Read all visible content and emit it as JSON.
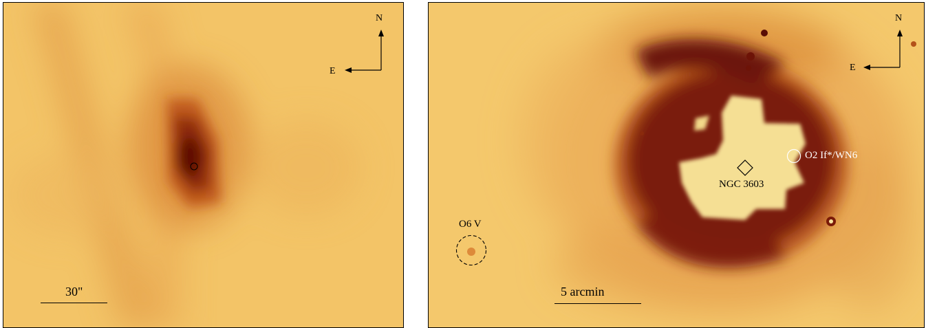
{
  "left_panel": {
    "compass": {
      "north": "N",
      "east": "E"
    },
    "scale_bar": {
      "label": "30\""
    }
  },
  "right_panel": {
    "compass": {
      "north": "N",
      "east": "E"
    },
    "scale_bar": {
      "label": "5 arcmin"
    },
    "annotations": {
      "cluster": "NGC 3603",
      "wr_star": "O2 If*/WN6",
      "o_star": "O6 V"
    }
  },
  "colors": {
    "background": "#f3c76a",
    "faint": "#eab25a",
    "mid": "#cf7a28",
    "dark": "#6e1408",
    "saturated": "#f6e39a"
  }
}
